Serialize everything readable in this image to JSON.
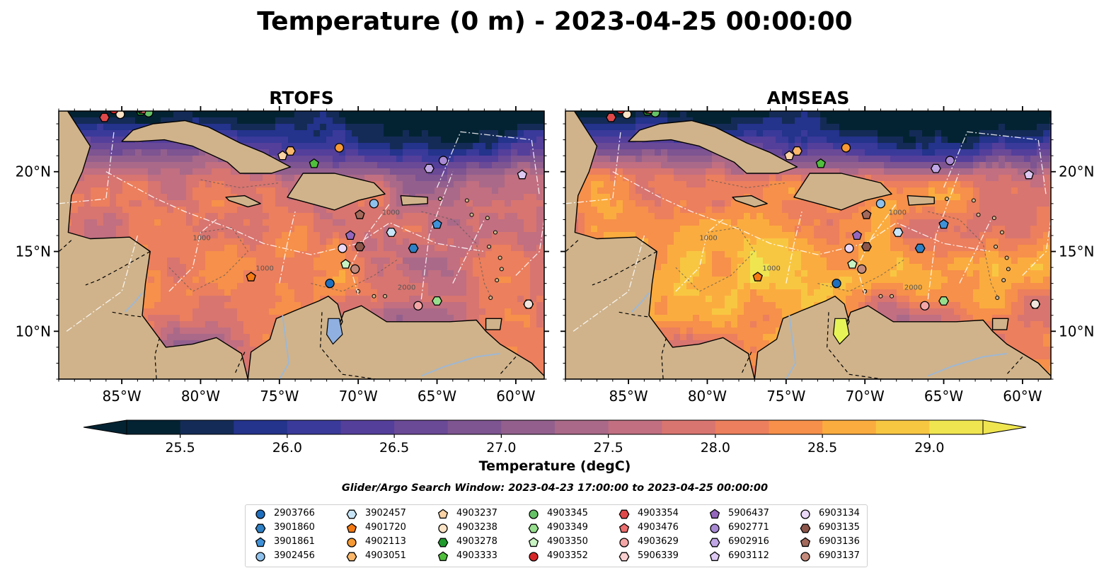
{
  "chart_data": {
    "type": "heatmap",
    "title": "Temperature (0 m) - 2023-04-25 00:00:00",
    "panels": [
      {
        "title": "RTOFS",
        "model": "RTOFS"
      },
      {
        "title": "AMSEAS",
        "model": "AMSEAS"
      }
    ],
    "x_axis": {
      "ticks": [
        "85°W",
        "80°W",
        "75°W",
        "70°W",
        "65°W",
        "60°W"
      ],
      "tick_values": [
        -85,
        -80,
        -75,
        -70,
        -65,
        -60
      ],
      "range": [
        -89,
        -58.2
      ]
    },
    "y_axis": {
      "ticks": [
        "10°N",
        "15°N",
        "20°N"
      ],
      "tick_values": [
        10,
        15,
        20
      ],
      "range": [
        7,
        23.8
      ]
    },
    "colorbar": {
      "label": "Temperature (degC)",
      "ticks": [
        "25.5",
        "26.0",
        "26.5",
        "27.0",
        "27.5",
        "28.0",
        "28.5",
        "29.0"
      ],
      "range": [
        25.25,
        29.25
      ],
      "extend": "both",
      "colors": [
        "#032333",
        "#142b57",
        "#24338c",
        "#3a3a9a",
        "#543f9b",
        "#6a4997",
        "#7e5491",
        "#93608e",
        "#aa6988",
        "#c16f81",
        "#d87570",
        "#ec7f5d",
        "#f6904a",
        "#fbac3f",
        "#f8c742",
        "#efe550"
      ]
    },
    "contours": [
      "1000",
      "2000"
    ],
    "subtitle": "Glider/Argo Search Window: 2023-04-23 17:00:00 to 2023-04-25 00:00:00",
    "floats": [
      {
        "id": "2903766",
        "marker": "circle",
        "color": "#1f6fbf",
        "lon": -71.8,
        "lat": 13.0
      },
      {
        "id": "3901860",
        "marker": "hexagon",
        "color": "#2f80c4",
        "lon": -66.5,
        "lat": 15.2
      },
      {
        "id": "3901861",
        "marker": "pentagon",
        "color": "#3f91d8",
        "lon": -65.0,
        "lat": 16.7
      },
      {
        "id": "3902456",
        "marker": "circle",
        "color": "#8ec1ec",
        "lon": -69.0,
        "lat": 18.0
      },
      {
        "id": "3902457",
        "marker": "hexagon",
        "color": "#c8e5f7",
        "lon": -67.9,
        "lat": 16.2
      },
      {
        "id": "4901720",
        "marker": "pentagon",
        "color": "#f57a12",
        "lon": -76.8,
        "lat": 13.4
      },
      {
        "id": "4902113",
        "marker": "circle",
        "color": "#f59a34",
        "lon": -71.2,
        "lat": 21.5
      },
      {
        "id": "4903051",
        "marker": "hexagon",
        "color": "#fbb86a",
        "lon": -74.3,
        "lat": 21.3
      },
      {
        "id": "4903237",
        "marker": "pentagon",
        "color": "#fbd3a4",
        "lon": -74.8,
        "lat": 21.0
      },
      {
        "id": "4903238",
        "marker": "circle",
        "color": "#fde4c6",
        "lon": -85.1,
        "lat": 23.6
      },
      {
        "id": "4903278",
        "marker": "hexagon",
        "color": "#1f9a2c",
        "lon": -83.8,
        "lat": 23.8
      },
      {
        "id": "4903333",
        "marker": "pentagon",
        "color": "#4fbf3c",
        "lon": -72.8,
        "lat": 20.5
      },
      {
        "id": "4903345",
        "marker": "circle",
        "color": "#66c266",
        "lon": -83.3,
        "lat": 23.7
      },
      {
        "id": "4903349",
        "marker": "hexagon",
        "color": "#97df8e",
        "lon": -65.0,
        "lat": 11.9
      },
      {
        "id": "4903350",
        "marker": "pentagon",
        "color": "#c8f3c2",
        "lon": -70.8,
        "lat": 14.2
      },
      {
        "id": "4903352",
        "marker": "circle",
        "color": "#d62728",
        "lon": -85.5,
        "lat": 23.9
      },
      {
        "id": "4903354",
        "marker": "hexagon",
        "color": "#e0494a",
        "lon": -86.1,
        "lat": 23.4
      },
      {
        "id": "4903476",
        "marker": "pentagon",
        "color": "#ec6e6e",
        "lon": -83.7,
        "lat": 23.9
      },
      {
        "id": "4903629",
        "marker": "circle",
        "color": "#f4a6a6",
        "lon": -66.2,
        "lat": 11.6
      },
      {
        "id": "5906339",
        "marker": "hexagon",
        "color": "#f9cfcf",
        "lon": -83.9,
        "lat": 24.0
      },
      {
        "id": "5906437",
        "marker": "pentagon",
        "color": "#9467bd",
        "lon": -70.5,
        "lat": 16.0
      },
      {
        "id": "6902771",
        "marker": "circle",
        "color": "#a889d4",
        "lon": -64.6,
        "lat": 20.7
      },
      {
        "id": "6902916",
        "marker": "hexagon",
        "color": "#c0a6e4",
        "lon": -65.5,
        "lat": 20.2
      },
      {
        "id": "6903112",
        "marker": "pentagon",
        "color": "#ddc9f2",
        "lon": -59.6,
        "lat": 19.8
      },
      {
        "id": "6903134",
        "marker": "circle",
        "color": "#ead8f7",
        "lon": -71.0,
        "lat": 15.2
      },
      {
        "id": "6903135",
        "marker": "hexagon",
        "color": "#8c564b",
        "lon": -69.9,
        "lat": 15.3
      },
      {
        "id": "6903136",
        "marker": "pentagon",
        "color": "#a36a5c",
        "lon": -69.9,
        "lat": 17.3
      },
      {
        "id": "6903137",
        "marker": "circle",
        "color": "#c48a7b",
        "lon": -70.2,
        "lat": 13.9
      }
    ],
    "extra_markers": [
      {
        "marker": "hexagon",
        "color": "#f1e4dc",
        "lon": -59.2,
        "lat": 11.7
      },
      {
        "marker": "circle",
        "color": "#f1e4dc",
        "lon": -59.2,
        "lat": 11.7
      }
    ]
  }
}
